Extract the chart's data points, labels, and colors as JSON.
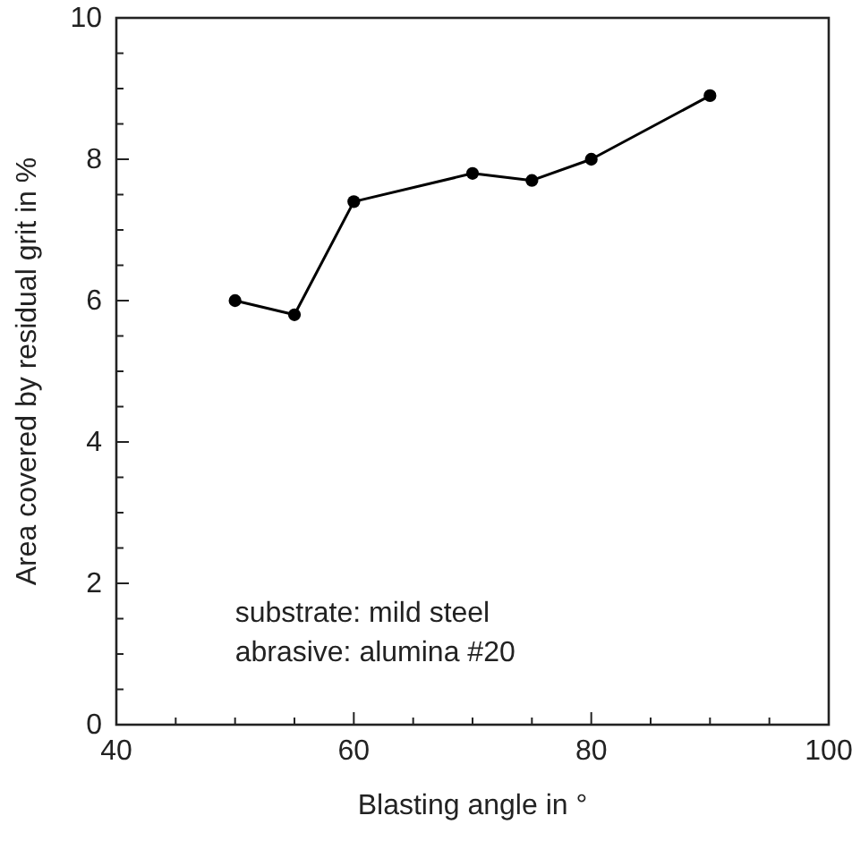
{
  "chart_data": {
    "type": "line",
    "xlabel": "Blasting angle in °",
    "ylabel": "Area covered by residual grit in %",
    "x": [
      50,
      55,
      60,
      70,
      75,
      80,
      90
    ],
    "series": [
      {
        "color": "#000000",
        "values": [
          6.0,
          5.8,
          7.4,
          7.8,
          7.7,
          8.0,
          8.9
        ]
      }
    ],
    "marker": "circle",
    "line_style": "solid",
    "xlim": [
      40,
      100
    ],
    "ylim": [
      0,
      10
    ],
    "xticks": [
      40,
      {
        "value": 45,
        "label": null
      },
      {
        "value": 50,
        "label": null
      },
      {
        "value": 55,
        "label": null
      },
      60,
      {
        "value": 65,
        "label": null
      },
      {
        "value": 70,
        "label": null
      },
      {
        "value": 75,
        "label": null
      },
      80,
      {
        "value": 85,
        "label": null
      },
      {
        "value": 90,
        "label": null
      },
      {
        "value": 95,
        "label": null
      },
      100
    ],
    "yticks": [
      0,
      {
        "value": 0.5,
        "label": null
      },
      {
        "value": 1,
        "label": null
      },
      {
        "value": 1.5,
        "label": null
      },
      2,
      {
        "value": 2.5,
        "label": null
      },
      {
        "value": 3,
        "label": null
      },
      {
        "value": 3.5,
        "label": null
      },
      4,
      {
        "value": 4.5,
        "label": null
      },
      {
        "value": 5,
        "label": null
      },
      {
        "value": 5.5,
        "label": null
      },
      6,
      {
        "value": 6.5,
        "label": null
      },
      {
        "value": 7,
        "label": null
      },
      {
        "value": 7.5,
        "label": null
      },
      8,
      {
        "value": 8.5,
        "label": null
      },
      {
        "value": 9,
        "label": null
      },
      {
        "value": 9.5,
        "label": null
      },
      10
    ],
    "annotations": [
      "substrate: mild steel\nabrasive: alumina #20"
    ]
  }
}
